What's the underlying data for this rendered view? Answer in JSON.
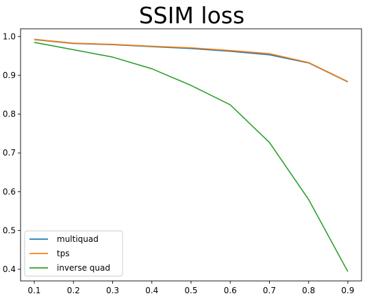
{
  "chart_data": {
    "type": "line",
    "title": "SSIM loss",
    "xlabel": "",
    "ylabel": "",
    "x": [
      0.1,
      0.2,
      0.3,
      0.4,
      0.5,
      0.6,
      0.7,
      0.8,
      0.9
    ],
    "xticks": [
      "0.1",
      "0.2",
      "0.3",
      "0.4",
      "0.5",
      "0.6",
      "0.7",
      "0.8",
      "0.9"
    ],
    "yticks": [
      "0.4",
      "0.5",
      "0.6",
      "0.7",
      "0.8",
      "0.9",
      "1.0"
    ],
    "xlim": [
      0.065,
      0.935
    ],
    "ylim": [
      0.37,
      1.02
    ],
    "grid": false,
    "legend_position": "lower-left",
    "series": [
      {
        "name": "multiquad",
        "color": "#1f77b4",
        "values": [
          0.992,
          0.982,
          0.979,
          0.974,
          0.969,
          0.962,
          0.953,
          0.932,
          0.883
        ]
      },
      {
        "name": "tps",
        "color": "#ff7f0e",
        "values": [
          0.993,
          0.983,
          0.98,
          0.975,
          0.971,
          0.964,
          0.956,
          0.933,
          0.884
        ]
      },
      {
        "name": "inverse quad",
        "color": "#2ca02c",
        "values": [
          0.985,
          0.966,
          0.947,
          0.917,
          0.874,
          0.824,
          0.727,
          0.58,
          0.394
        ]
      }
    ]
  }
}
